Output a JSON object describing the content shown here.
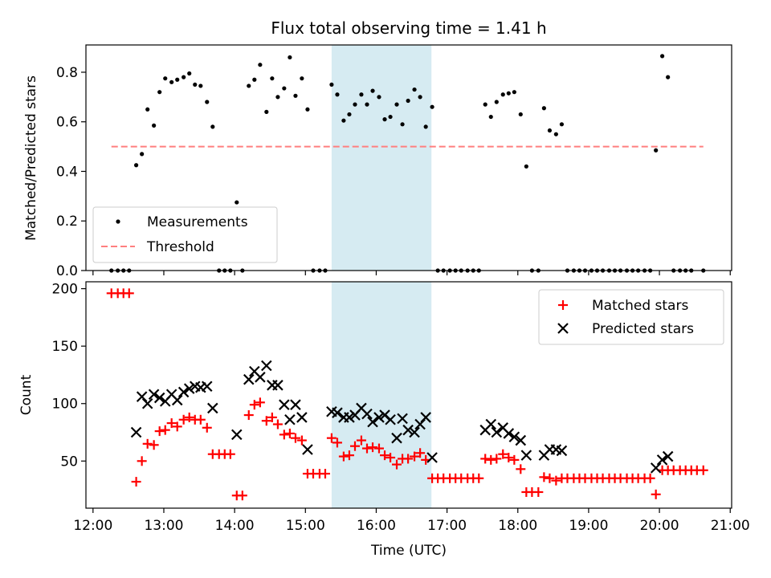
{
  "chart_data": [
    {
      "type": "scatter",
      "title": "Flux total observing time = 1.41 h",
      "xlabel": "",
      "ylabel": "Matched/Predicted stars",
      "xlim": [
        11.9,
        21.02
      ],
      "ylim": [
        0.0,
        0.91
      ],
      "yticks": [
        0.0,
        0.2,
        0.4,
        0.6,
        0.8
      ],
      "yticklabels": [
        "0.0",
        "0.2",
        "0.4",
        "0.6",
        "0.8"
      ],
      "highlight_span": [
        15.37,
        16.78
      ],
      "highlight_color": "#add8e6",
      "legend_placement": "lower-left",
      "series": [
        {
          "name": "Measurements",
          "marker": "dot",
          "color": "#000000",
          "points": [
            [
              12.26,
              0.0
            ],
            [
              12.35,
              0.0
            ],
            [
              12.43,
              0.0
            ],
            [
              12.51,
              0.0
            ],
            [
              12.61,
              0.425
            ],
            [
              12.69,
              0.47
            ],
            [
              12.77,
              0.65
            ],
            [
              12.86,
              0.585
            ],
            [
              12.94,
              0.72
            ],
            [
              13.02,
              0.775
            ],
            [
              13.11,
              0.76
            ],
            [
              13.19,
              0.77
            ],
            [
              13.28,
              0.78
            ],
            [
              13.36,
              0.795
            ],
            [
              13.44,
              0.75
            ],
            [
              13.52,
              0.745
            ],
            [
              13.61,
              0.68
            ],
            [
              13.69,
              0.58
            ],
            [
              13.78,
              0.0
            ],
            [
              13.86,
              0.0
            ],
            [
              13.94,
              0.0
            ],
            [
              14.03,
              0.275
            ],
            [
              14.11,
              0.0
            ],
            [
              14.2,
              0.745
            ],
            [
              14.28,
              0.77
            ],
            [
              14.36,
              0.83
            ],
            [
              14.45,
              0.64
            ],
            [
              14.53,
              0.775
            ],
            [
              14.61,
              0.7
            ],
            [
              14.7,
              0.735
            ],
            [
              14.78,
              0.86
            ],
            [
              14.86,
              0.705
            ],
            [
              14.95,
              0.775
            ],
            [
              15.03,
              0.65
            ],
            [
              15.11,
              0.0
            ],
            [
              15.2,
              0.0
            ],
            [
              15.28,
              0.0
            ],
            [
              15.37,
              0.75
            ],
            [
              15.45,
              0.71
            ],
            [
              15.54,
              0.605
            ],
            [
              15.62,
              0.63
            ],
            [
              15.7,
              0.67
            ],
            [
              15.79,
              0.71
            ],
            [
              15.87,
              0.67
            ],
            [
              15.95,
              0.725
            ],
            [
              16.04,
              0.7
            ],
            [
              16.12,
              0.61
            ],
            [
              16.2,
              0.62
            ],
            [
              16.29,
              0.67
            ],
            [
              16.37,
              0.59
            ],
            [
              16.45,
              0.685
            ],
            [
              16.54,
              0.73
            ],
            [
              16.62,
              0.7
            ],
            [
              16.7,
              0.58
            ],
            [
              16.79,
              0.66
            ],
            [
              16.87,
              0.0
            ],
            [
              16.95,
              0.0
            ],
            [
              17.04,
              0.0
            ],
            [
              17.12,
              0.0
            ],
            [
              17.2,
              0.0
            ],
            [
              17.29,
              0.0
            ],
            [
              17.37,
              0.0
            ],
            [
              17.45,
              0.0
            ],
            [
              17.54,
              0.67
            ],
            [
              17.62,
              0.62
            ],
            [
              17.7,
              0.68
            ],
            [
              17.79,
              0.71
            ],
            [
              17.87,
              0.715
            ],
            [
              17.95,
              0.72
            ],
            [
              18.04,
              0.63
            ],
            [
              18.12,
              0.42
            ],
            [
              18.2,
              0.0
            ],
            [
              18.29,
              0.0
            ],
            [
              18.37,
              0.655
            ],
            [
              18.45,
              0.565
            ],
            [
              18.54,
              0.55
            ],
            [
              18.62,
              0.59
            ],
            [
              18.7,
              0.0
            ],
            [
              18.79,
              0.0
            ],
            [
              18.87,
              0.0
            ],
            [
              18.95,
              0.0
            ],
            [
              19.04,
              0.0
            ],
            [
              19.12,
              0.0
            ],
            [
              19.2,
              0.0
            ],
            [
              19.29,
              0.0
            ],
            [
              19.37,
              0.0
            ],
            [
              19.45,
              0.0
            ],
            [
              19.54,
              0.0
            ],
            [
              19.62,
              0.0
            ],
            [
              19.7,
              0.0
            ],
            [
              19.79,
              0.0
            ],
            [
              19.87,
              0.0
            ],
            [
              19.95,
              0.485
            ],
            [
              20.04,
              0.865
            ],
            [
              20.12,
              0.78
            ],
            [
              20.2,
              0.0
            ],
            [
              20.29,
              0.0
            ],
            [
              20.37,
              0.0
            ],
            [
              20.45,
              0.0
            ],
            [
              20.62,
              0.0
            ]
          ]
        },
        {
          "name": "Threshold",
          "marker": "dashed-line",
          "color": "#ff7f7f",
          "points": [
            [
              12.26,
              0.5
            ],
            [
              20.62,
              0.5
            ]
          ]
        }
      ]
    },
    {
      "type": "scatter",
      "title": "",
      "xlabel": "Time (UTC)",
      "ylabel": "Count",
      "xlim": [
        11.9,
        21.02
      ],
      "ylim": [
        9.0,
        206.0
      ],
      "xticks": [
        12,
        13,
        14,
        15,
        16,
        17,
        18,
        19,
        20,
        21
      ],
      "xticklabels": [
        "12:00",
        "13:00",
        "14:00",
        "15:00",
        "16:00",
        "17:00",
        "18:00",
        "19:00",
        "20:00",
        "21:00"
      ],
      "yticks": [
        50,
        100,
        150,
        200
      ],
      "yticklabels": [
        "50",
        "100",
        "150",
        "200"
      ],
      "highlight_span": [
        15.37,
        16.78
      ],
      "highlight_color": "#add8e6",
      "legend_placement": "upper-right",
      "series": [
        {
          "name": "Matched stars",
          "marker": "plus",
          "color": "#ff0000",
          "points": [
            [
              12.26,
              196
            ],
            [
              12.35,
              196
            ],
            [
              12.43,
              196
            ],
            [
              12.51,
              196
            ],
            [
              12.61,
              32
            ],
            [
              12.69,
              50
            ],
            [
              12.77,
              65
            ],
            [
              12.86,
              64
            ],
            [
              12.94,
              76
            ],
            [
              13.02,
              77
            ],
            [
              13.11,
              83
            ],
            [
              13.19,
              80
            ],
            [
              13.28,
              86
            ],
            [
              13.36,
              88
            ],
            [
              13.44,
              86
            ],
            [
              13.52,
              86
            ],
            [
              13.61,
              79
            ],
            [
              13.69,
              56
            ],
            [
              13.78,
              56
            ],
            [
              13.86,
              56
            ],
            [
              13.94,
              56
            ],
            [
              14.03,
              20
            ],
            [
              14.11,
              20
            ],
            [
              14.2,
              90
            ],
            [
              14.28,
              99
            ],
            [
              14.36,
              101
            ],
            [
              14.45,
              85
            ],
            [
              14.53,
              88
            ],
            [
              14.61,
              82
            ],
            [
              14.7,
              73
            ],
            [
              14.78,
              74
            ],
            [
              14.86,
              70
            ],
            [
              14.95,
              68
            ],
            [
              15.03,
              39
            ],
            [
              15.11,
              39
            ],
            [
              15.2,
              39
            ],
            [
              15.28,
              39
            ],
            [
              15.37,
              70
            ],
            [
              15.45,
              66
            ],
            [
              15.54,
              54
            ],
            [
              15.62,
              55
            ],
            [
              15.7,
              63
            ],
            [
              15.79,
              68
            ],
            [
              15.87,
              61
            ],
            [
              15.95,
              62
            ],
            [
              16.04,
              61
            ],
            [
              16.12,
              55
            ],
            [
              16.2,
              53
            ],
            [
              16.29,
              47
            ],
            [
              16.37,
              52
            ],
            [
              16.45,
              52
            ],
            [
              16.54,
              54
            ],
            [
              16.62,
              57
            ],
            [
              16.7,
              51
            ],
            [
              16.79,
              35
            ],
            [
              16.87,
              35
            ],
            [
              16.95,
              35
            ],
            [
              17.04,
              35
            ],
            [
              17.12,
              35
            ],
            [
              17.2,
              35
            ],
            [
              17.29,
              35
            ],
            [
              17.37,
              35
            ],
            [
              17.45,
              35
            ],
            [
              17.54,
              52
            ],
            [
              17.62,
              51
            ],
            [
              17.7,
              52
            ],
            [
              17.79,
              56
            ],
            [
              17.87,
              53
            ],
            [
              17.95,
              51
            ],
            [
              18.04,
              43
            ],
            [
              18.12,
              23
            ],
            [
              18.2,
              23
            ],
            [
              18.29,
              23
            ],
            [
              18.37,
              36
            ],
            [
              18.45,
              35
            ],
            [
              18.54,
              33
            ],
            [
              18.62,
              35
            ],
            [
              18.7,
              35
            ],
            [
              18.79,
              35
            ],
            [
              18.87,
              35
            ],
            [
              18.95,
              35
            ],
            [
              19.04,
              35
            ],
            [
              19.12,
              35
            ],
            [
              19.2,
              35
            ],
            [
              19.29,
              35
            ],
            [
              19.37,
              35
            ],
            [
              19.45,
              35
            ],
            [
              19.54,
              35
            ],
            [
              19.62,
              35
            ],
            [
              19.7,
              35
            ],
            [
              19.79,
              35
            ],
            [
              19.87,
              35
            ],
            [
              19.95,
              21
            ],
            [
              20.04,
              42
            ],
            [
              20.12,
              42
            ],
            [
              20.2,
              42
            ],
            [
              20.29,
              42
            ],
            [
              20.37,
              42
            ],
            [
              20.45,
              42
            ],
            [
              20.53,
              42
            ],
            [
              20.62,
              42
            ]
          ]
        },
        {
          "name": "Predicted stars",
          "marker": "x",
          "color": "#000000",
          "points": [
            [
              12.61,
              75
            ],
            [
              12.69,
              106
            ],
            [
              12.77,
              100
            ],
            [
              12.86,
              108
            ],
            [
              12.94,
              105
            ],
            [
              13.02,
              102
            ],
            [
              13.11,
              108
            ],
            [
              13.19,
              103
            ],
            [
              13.28,
              110
            ],
            [
              13.36,
              113
            ],
            [
              13.44,
              115
            ],
            [
              13.52,
              114
            ],
            [
              13.61,
              115
            ],
            [
              13.69,
              96
            ],
            [
              14.03,
              73
            ],
            [
              14.2,
              121
            ],
            [
              14.28,
              128
            ],
            [
              14.36,
              123
            ],
            [
              14.45,
              133
            ],
            [
              14.53,
              116
            ],
            [
              14.61,
              116
            ],
            [
              14.7,
              99
            ],
            [
              14.78,
              86
            ],
            [
              14.86,
              99
            ],
            [
              14.95,
              88
            ],
            [
              15.03,
              60
            ],
            [
              15.37,
              93
            ],
            [
              15.45,
              92
            ],
            [
              15.54,
              88
            ],
            [
              15.62,
              88
            ],
            [
              15.7,
              90
            ],
            [
              15.79,
              96
            ],
            [
              15.87,
              91
            ],
            [
              15.95,
              84
            ],
            [
              16.04,
              88
            ],
            [
              16.12,
              90
            ],
            [
              16.2,
              86
            ],
            [
              16.29,
              70
            ],
            [
              16.37,
              87
            ],
            [
              16.45,
              77
            ],
            [
              16.54,
              75
            ],
            [
              16.62,
              82
            ],
            [
              16.7,
              88
            ],
            [
              16.79,
              53
            ],
            [
              17.54,
              77
            ],
            [
              17.62,
              82
            ],
            [
              17.7,
              75
            ],
            [
              17.79,
              79
            ],
            [
              17.87,
              74
            ],
            [
              17.95,
              71
            ],
            [
              18.04,
              68
            ],
            [
              18.12,
              55
            ],
            [
              18.37,
              55
            ],
            [
              18.45,
              60
            ],
            [
              18.54,
              60
            ],
            [
              18.62,
              59
            ],
            [
              19.95,
              44
            ],
            [
              20.04,
              51
            ],
            [
              20.12,
              54
            ]
          ]
        }
      ]
    }
  ]
}
